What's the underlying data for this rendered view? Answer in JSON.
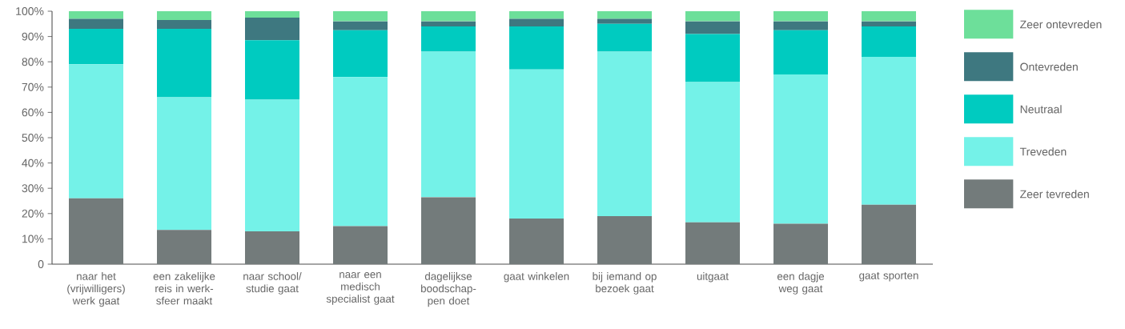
{
  "chart_data": {
    "type": "bar",
    "stacked": true,
    "categories": [
      "naar het (vrijwilligers) werk gaat",
      "een zakelijke reis in werk-sfeer maakt",
      "naar school/ studie gaat",
      "naar een medisch specialist gaat",
      "dagelijkse boodschap-pen doet",
      "gaat winkelen",
      "bij iemand op bezoek gaat",
      "uitgaat",
      "een dagje weg gaat",
      "gaat sporten"
    ],
    "series": [
      {
        "name": "Zeer tevreden",
        "color": "#737b7b",
        "values": [
          26,
          13.5,
          13,
          15,
          26.5,
          18,
          19,
          16.5,
          16,
          23.5
        ]
      },
      {
        "name": "Treveden",
        "color": "#74f2e8",
        "values": [
          53,
          52.5,
          52,
          59,
          57.5,
          59,
          65,
          55.5,
          59,
          58.5
        ]
      },
      {
        "name": "Neutraal",
        "color": "#00cbc0",
        "values": [
          14,
          27,
          23.5,
          18.5,
          10,
          17,
          11,
          19,
          17.5,
          12
        ]
      },
      {
        "name": "Ontevreden",
        "color": "#3e7880",
        "values": [
          4,
          3.5,
          9,
          3.5,
          2,
          3,
          2,
          5,
          3.5,
          2
        ]
      },
      {
        "name": "Zeer ontevreden",
        "color": "#6ddf9a",
        "values": [
          3,
          3.5,
          2.5,
          4,
          4,
          3,
          3,
          4,
          4,
          4
        ]
      }
    ],
    "ylim": [
      0,
      100
    ],
    "yticks": [
      0,
      {
        "value": 10,
        "label": "10%"
      },
      {
        "value": 20,
        "label": "20%"
      },
      {
        "value": 30,
        "label": "30%"
      },
      {
        "value": 40,
        "label": "40%"
      },
      {
        "value": 50,
        "label": "50%"
      },
      {
        "value": 60,
        "label": "60%"
      },
      {
        "value": 70,
        "label": "70%"
      },
      {
        "value": 80,
        "label": "80%"
      },
      {
        "value": 90,
        "label": "90%"
      },
      {
        "value": 100,
        "label": "100%"
      }
    ],
    "legend": "right"
  }
}
